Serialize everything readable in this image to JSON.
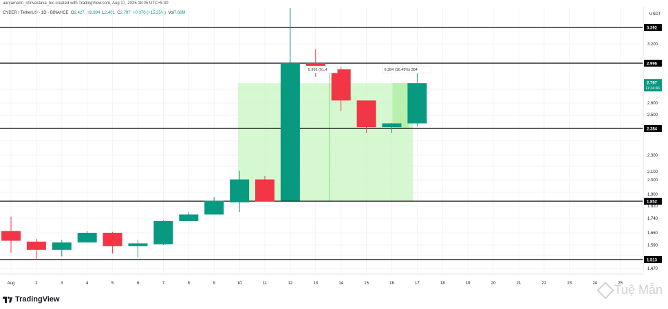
{
  "credit": "aaryamann_shrivastava_bic created with TradingView.com, Aug 17, 2025 18:05 UTC+5:30",
  "legend": {
    "symbol": "CYBER / TetherUS · 1D · BINANCE",
    "o_label": "O",
    "o": "2.427",
    "h_label": "H",
    "h": "2.894",
    "l_label": "L",
    "l": "2.401",
    "c_label": "C",
    "c": "2.797",
    "change": "+0.370 (+15.25%)",
    "vol_label": "Vol",
    "vol": "7.66M"
  },
  "brand": {
    "name": "TradingView"
  },
  "watermark": {
    "text": "Tuệ Mẫn"
  },
  "chart_data": {
    "type": "candlestick",
    "currency_label": "USDT",
    "y_ticks": [
      "3.200",
      "2.600",
      "2.500",
      "2.300",
      "2.100",
      "2.000",
      "1.900",
      "1.820",
      "1.740",
      "1.660",
      "1.590",
      "1.520",
      "1.470"
    ],
    "x_ticks": [
      "Aug",
      "2",
      "3",
      "4",
      "5",
      "6",
      "7",
      "8",
      "9",
      "10",
      "11",
      "12",
      "13",
      "14",
      "15",
      "16",
      "17",
      "18",
      "19",
      "20",
      "21",
      "22",
      "23",
      "24",
      "25"
    ],
    "candles": [
      {
        "x": "1",
        "o": 1.67,
        "h": 1.75,
        "l": 1.55,
        "c": 1.615
      },
      {
        "x": "2",
        "o": 1.61,
        "h": 1.625,
        "l": 1.51,
        "c": 1.565
      },
      {
        "x": "3",
        "o": 1.565,
        "h": 1.62,
        "l": 1.53,
        "c": 1.605
      },
      {
        "x": "4",
        "o": 1.605,
        "h": 1.67,
        "l": 1.605,
        "c": 1.66
      },
      {
        "x": "5",
        "o": 1.66,
        "h": 1.665,
        "l": 1.545,
        "c": 1.585
      },
      {
        "x": "6",
        "o": 1.585,
        "h": 1.62,
        "l": 1.525,
        "c": 1.6
      },
      {
        "x": "7",
        "o": 1.595,
        "h": 1.73,
        "l": 1.59,
        "c": 1.725
      },
      {
        "x": "8",
        "o": 1.725,
        "h": 1.78,
        "l": 1.725,
        "c": 1.765
      },
      {
        "x": "9",
        "o": 1.765,
        "h": 1.88,
        "l": 1.765,
        "c": 1.855
      },
      {
        "x": "10",
        "o": 1.845,
        "h": 2.11,
        "l": 1.78,
        "c": 2.005
      },
      {
        "x": "11",
        "o": 2.005,
        "h": 2.05,
        "l": 1.85,
        "c": 1.85
      },
      {
        "x": "12",
        "o": 1.855,
        "h": 3.9,
        "l": 1.855,
        "c": 2.996
      },
      {
        "x": "13",
        "o": 2.996,
        "h": 3.145,
        "l": 2.86,
        "c": 2.94
      },
      {
        "x": "14",
        "o": 2.935,
        "h": 2.96,
        "l": 2.53,
        "c": 2.625
      },
      {
        "x": "15",
        "o": 2.625,
        "h": 2.625,
        "l": 2.37,
        "c": 2.395
      },
      {
        "x": "16",
        "o": 2.395,
        "h": 2.43,
        "l": 2.37,
        "c": 2.427
      },
      {
        "x": "17",
        "o": 2.427,
        "h": 2.894,
        "l": 2.401,
        "c": 2.797
      }
    ],
    "levels": [
      {
        "value": 3.392,
        "label": "3.392"
      },
      {
        "value": 2.996,
        "label": "2.996"
      },
      {
        "value": 2.384,
        "label": "2.384"
      },
      {
        "value": 1.852,
        "label": "1.852"
      },
      {
        "value": 1.513,
        "label": "1.513"
      }
    ],
    "current_price": {
      "label": "2.797",
      "countdown": "11:24:46"
    },
    "measure_zone": {
      "x_start": "10",
      "x_end": "17",
      "top": 2.797,
      "bottom": 1.852
    },
    "measure_labels": [
      {
        "text": "0.992 (51.4",
        "x": "13"
      },
      {
        "text": "0.384 (16.45%) 384",
        "x": "16"
      }
    ],
    "colors": {
      "up": "#089981",
      "down": "#f23645",
      "zone": "#c8f5c0",
      "level": "#000000"
    }
  }
}
